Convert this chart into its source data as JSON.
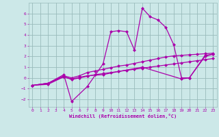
{
  "xlabel": "Windchill (Refroidissement éolien,°C)",
  "bg_color": "#cce8e8",
  "line_color": "#aa00aa",
  "grid_color": "#99bbbb",
  "xlim": [
    -0.5,
    23.5
  ],
  "ylim": [
    -2.7,
    7.0
  ],
  "yticks": [
    -2,
    -1,
    0,
    1,
    2,
    3,
    4,
    5,
    6
  ],
  "xticks": [
    0,
    1,
    2,
    3,
    4,
    5,
    6,
    7,
    8,
    9,
    10,
    11,
    12,
    13,
    14,
    15,
    16,
    17,
    18,
    19,
    20,
    21,
    22,
    23
  ],
  "line1_x": [
    0,
    2,
    4,
    5,
    7,
    9,
    10,
    11,
    12,
    13,
    14,
    15,
    16,
    17,
    18,
    19,
    20,
    22,
    23
  ],
  "line1_y": [
    -0.7,
    -0.5,
    0.3,
    -2.2,
    -0.8,
    1.3,
    4.3,
    4.4,
    4.3,
    2.6,
    6.5,
    5.7,
    5.4,
    4.7,
    3.1,
    0.0,
    0.0,
    2.1,
    2.2
  ],
  "line2_x": [
    0,
    2,
    4,
    5,
    6,
    7,
    8,
    9,
    10,
    11,
    12,
    13,
    14,
    15,
    16,
    17,
    18,
    19,
    20,
    21,
    22,
    23
  ],
  "line2_y": [
    -0.7,
    -0.5,
    0.2,
    0.0,
    0.2,
    0.5,
    0.65,
    0.8,
    0.95,
    1.1,
    1.2,
    1.35,
    1.5,
    1.65,
    1.8,
    1.95,
    2.05,
    2.1,
    2.15,
    2.2,
    2.25,
    2.3
  ],
  "line3_x": [
    0,
    2,
    4,
    5,
    6,
    7,
    8,
    9,
    10,
    11,
    12,
    13,
    14,
    15,
    16,
    17,
    18,
    19,
    20,
    21,
    22,
    23
  ],
  "line3_y": [
    -0.7,
    -0.5,
    0.1,
    -0.15,
    0.0,
    0.15,
    0.3,
    0.4,
    0.5,
    0.6,
    0.7,
    0.8,
    0.9,
    1.0,
    1.1,
    1.2,
    1.3,
    1.4,
    1.5,
    1.6,
    1.7,
    1.8
  ],
  "line4_x": [
    0,
    2,
    4,
    5,
    7,
    9,
    11,
    14,
    19,
    20,
    22,
    23
  ],
  "line4_y": [
    -0.7,
    -0.6,
    0.1,
    -0.1,
    0.2,
    0.3,
    0.6,
    1.0,
    -0.1,
    -0.0,
    2.0,
    2.2
  ],
  "markersize": 2.5
}
